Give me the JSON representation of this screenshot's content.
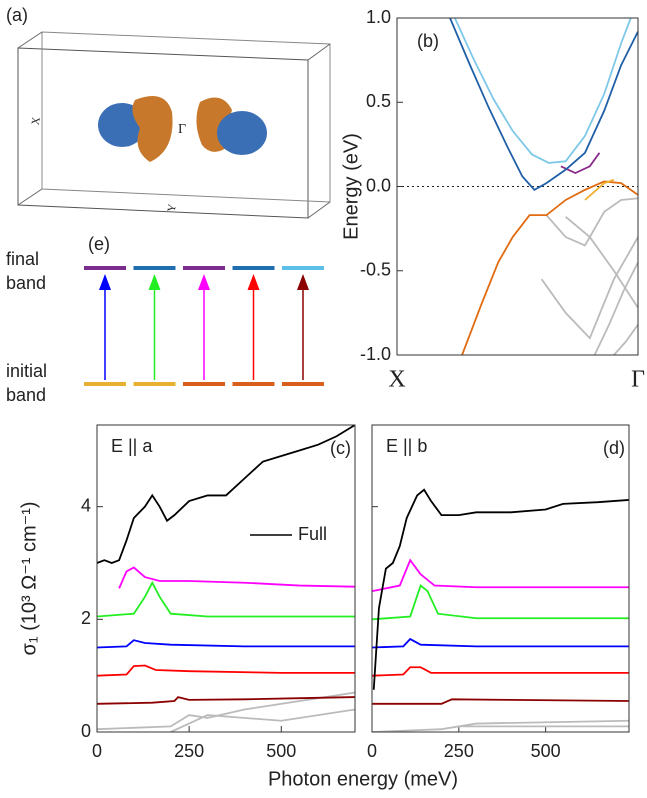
{
  "panel_a": {
    "label": "(a)",
    "gamma": "Γ",
    "x_label": "X",
    "y_label": "Y"
  },
  "panel_e": {
    "label": "(e)",
    "final_label": [
      "final",
      "band"
    ],
    "initial_label": [
      "initial",
      "band"
    ],
    "final_colors": [
      "#7b2d8e",
      "#1f6fb0",
      "#7b2d8e",
      "#1f6fb0",
      "#5bbfe8"
    ],
    "initial_colors": [
      "#e8b030",
      "#e8b030",
      "#d9601c",
      "#d9601c",
      "#d9601c"
    ],
    "arrow_colors": [
      "#0000ff",
      "#22ee22",
      "#ff00ff",
      "#ff0000",
      "#8b0000"
    ]
  },
  "chart_data": [
    {
      "type": "line",
      "panel_label": "(b)",
      "ylabel": "Energy (eV)",
      "xlim": [
        0,
        1
      ],
      "xticks": [
        {
          "value": 0,
          "label": "X"
        },
        {
          "value": 1,
          "label": "Γ"
        }
      ],
      "ylim": [
        -1,
        1
      ],
      "yticks": [
        {
          "value": 1,
          "label": "1.0"
        },
        {
          "value": 0.5,
          "label": "0.5"
        },
        {
          "value": 0,
          "label": "0.0"
        },
        {
          "value": -0.5,
          "label": "-0.5"
        },
        {
          "value": -1,
          "label": "-1.0"
        }
      ],
      "hline": 0,
      "series": [
        {
          "color": "#bbbbbb",
          "x": [
            0.62,
            0.7,
            0.78,
            0.86,
            0.93,
            1.0
          ],
          "values": [
            -0.17,
            -0.3,
            -0.35,
            -0.15,
            -0.08,
            -0.07
          ]
        },
        {
          "color": "#bbbbbb",
          "x": [
            0.7,
            0.8,
            0.9,
            1.0
          ],
          "values": [
            -0.18,
            -0.3,
            -0.5,
            -0.72
          ]
        },
        {
          "color": "#bbbbbb",
          "x": [
            0.6,
            0.7,
            0.8,
            0.9,
            1.0
          ],
          "values": [
            -0.55,
            -0.75,
            -0.9,
            -0.55,
            -0.3
          ]
        },
        {
          "color": "#bbbbbb",
          "x": [
            0.82,
            0.88,
            0.94,
            1.0
          ],
          "values": [
            -1.0,
            -0.82,
            -0.62,
            -0.45
          ]
        },
        {
          "color": "#bbbbbb",
          "x": [
            0.9,
            0.95,
            1.0
          ],
          "values": [
            -1.0,
            -0.92,
            -0.82
          ]
        },
        {
          "color": "#e06b10",
          "x": [
            0.27,
            0.35,
            0.42,
            0.48,
            0.55,
            0.62,
            0.7,
            0.78,
            0.86,
            0.93,
            1.0
          ],
          "values": [
            -1.0,
            -0.7,
            -0.45,
            -0.3,
            -0.17,
            -0.17,
            -0.08,
            -0.02,
            0.03,
            0.02,
            -0.05
          ]
        },
        {
          "color": "#f0b030",
          "x": [
            0.78,
            0.86,
            0.9
          ],
          "values": [
            -0.08,
            0.02,
            0.04
          ]
        },
        {
          "color": "#8b2c8b",
          "x": [
            0.68,
            0.74,
            0.8,
            0.84
          ],
          "values": [
            0.12,
            0.08,
            0.12,
            0.2
          ]
        },
        {
          "color": "#7ec8e8",
          "x": [
            0.24,
            0.32,
            0.4,
            0.48,
            0.56,
            0.63,
            0.7,
            0.78,
            0.86,
            0.93,
            0.97
          ],
          "values": [
            1.0,
            0.75,
            0.52,
            0.33,
            0.19,
            0.14,
            0.15,
            0.3,
            0.55,
            0.85,
            1.0
          ]
        },
        {
          "color": "#1f5fa8",
          "x": [
            0.22,
            0.3,
            0.38,
            0.46,
            0.52,
            0.57,
            0.62,
            0.7,
            0.78,
            0.86,
            0.93,
            1.0
          ],
          "values": [
            1.0,
            0.73,
            0.47,
            0.23,
            0.06,
            -0.02,
            0.02,
            0.1,
            0.2,
            0.45,
            0.72,
            0.92
          ]
        }
      ]
    },
    {
      "type": "line",
      "panel_label": "(c)",
      "annotation": "E || a",
      "ylabel": "σ₁ (10³ Ω⁻¹ cm⁻¹)",
      "xlabel": "Photon energy (meV)",
      "xlim": [
        0,
        700
      ],
      "xticks": [
        0,
        250,
        500
      ],
      "ylim": [
        0,
        5.45
      ],
      "yticks": [
        0,
        2,
        4
      ],
      "series": [
        {
          "color": "#bbbbbb",
          "x": [
            0,
            200,
            250,
            300,
            400,
            700
          ],
          "values": [
            0.05,
            0.1,
            0.3,
            0.25,
            0.4,
            0.7
          ]
        },
        {
          "color": "#bbbbbb",
          "x": [
            200,
            300,
            500,
            700
          ],
          "values": [
            0,
            0.3,
            0.2,
            0.4
          ]
        },
        {
          "color": "#8b0000",
          "x": [
            0,
            150,
            210,
            220,
            250,
            400,
            550,
            700
          ],
          "values": [
            0.5,
            0.52,
            0.55,
            0.62,
            0.57,
            0.58,
            0.6,
            0.62
          ]
        },
        {
          "color": "#ff0000",
          "x": [
            0,
            80,
            100,
            130,
            160,
            250,
            500,
            700
          ],
          "values": [
            1.0,
            1.02,
            1.17,
            1.18,
            1.1,
            1.08,
            1.05,
            1.05
          ]
        },
        {
          "color": "#0000ff",
          "x": [
            0,
            80,
            100,
            130,
            200,
            400,
            700
          ],
          "values": [
            1.5,
            1.52,
            1.63,
            1.58,
            1.55,
            1.52,
            1.52
          ]
        },
        {
          "color": "#22ee22",
          "x": [
            0,
            100,
            130,
            150,
            170,
            200,
            300,
            500,
            700
          ],
          "values": [
            2.05,
            2.1,
            2.4,
            2.65,
            2.4,
            2.1,
            2.05,
            2.05,
            2.05
          ]
        },
        {
          "color": "#ff00ff",
          "x": [
            60,
            80,
            100,
            130,
            170,
            250,
            400,
            550,
            700
          ],
          "values": [
            2.55,
            2.85,
            2.92,
            2.75,
            2.68,
            2.68,
            2.65,
            2.6,
            2.58
          ]
        },
        {
          "name": "Full",
          "color": "#000000",
          "x": [
            0,
            20,
            40,
            60,
            80,
            100,
            130,
            150,
            170,
            190,
            210,
            250,
            300,
            350,
            400,
            450,
            500,
            550,
            600,
            650,
            700
          ],
          "values": [
            3.0,
            3.05,
            3.0,
            3.05,
            3.4,
            3.8,
            4.0,
            4.2,
            4.0,
            3.75,
            3.85,
            4.1,
            4.2,
            4.2,
            4.5,
            4.8,
            4.9,
            5.0,
            5.1,
            5.25,
            5.45
          ]
        }
      ]
    },
    {
      "type": "line",
      "panel_label": "(d)",
      "annotation": "E || b",
      "ytick_labels": false,
      "xlim": [
        0,
        740
      ],
      "xticks": [
        0,
        250,
        500
      ],
      "ylim": [
        0,
        5.45
      ],
      "yticks": [
        0,
        2,
        4
      ],
      "series": [
        {
          "color": "#bbbbbb",
          "x": [
            0,
            200,
            300,
            740
          ],
          "values": [
            0,
            0.05,
            0.15,
            0.2
          ]
        },
        {
          "color": "#bbbbbb",
          "x": [
            250,
            400,
            740
          ],
          "values": [
            0.1,
            0.1,
            0.1
          ]
        },
        {
          "color": "#8b0000",
          "x": [
            0,
            200,
            230,
            400,
            740
          ],
          "values": [
            0.5,
            0.5,
            0.58,
            0.57,
            0.55
          ]
        },
        {
          "color": "#ff0000",
          "x": [
            0,
            90,
            110,
            140,
            170,
            740
          ],
          "values": [
            1.0,
            1.02,
            1.15,
            1.15,
            1.05,
            1.05
          ]
        },
        {
          "color": "#0000ff",
          "x": [
            0,
            90,
            110,
            140,
            300,
            740
          ],
          "values": [
            1.5,
            1.52,
            1.65,
            1.55,
            1.52,
            1.52
          ]
        },
        {
          "color": "#22ee22",
          "x": [
            0,
            110,
            140,
            160,
            190,
            300,
            740
          ],
          "values": [
            2.0,
            2.05,
            2.6,
            2.5,
            2.1,
            2.02,
            2.02
          ]
        },
        {
          "color": "#ff00ff",
          "x": [
            0,
            80,
            110,
            140,
            180,
            300,
            740
          ],
          "values": [
            2.5,
            2.6,
            3.05,
            2.8,
            2.6,
            2.57,
            2.57
          ]
        },
        {
          "color": "#000000",
          "x": [
            5,
            20,
            40,
            60,
            80,
            100,
            130,
            150,
            170,
            200,
            250,
            300,
            400,
            500,
            550,
            650,
            740
          ],
          "values": [
            0.75,
            2.2,
            2.9,
            3.0,
            3.3,
            3.8,
            4.2,
            4.3,
            4.1,
            3.85,
            3.85,
            3.9,
            3.9,
            3.95,
            4.05,
            4.08,
            4.12
          ]
        }
      ]
    }
  ]
}
